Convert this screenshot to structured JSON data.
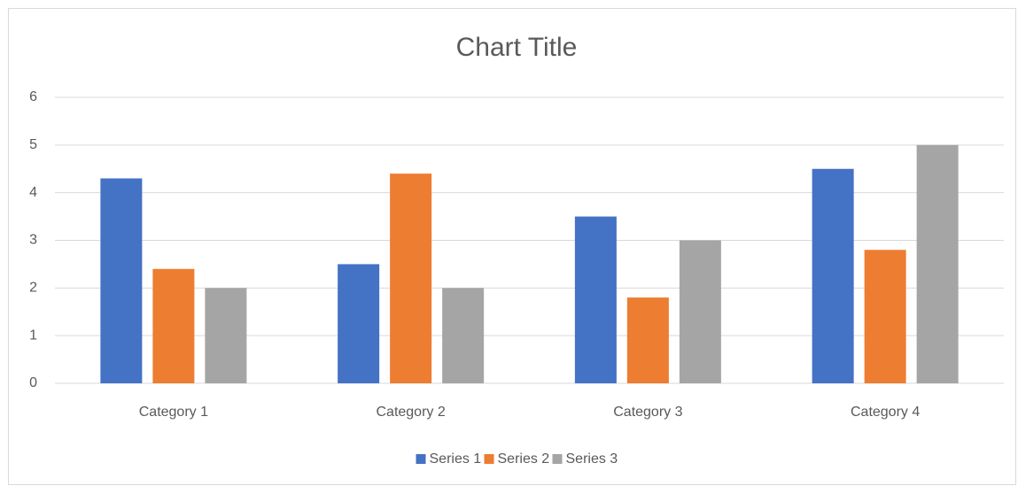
{
  "chart_data": {
    "type": "bar",
    "title": "Chart Title",
    "categories": [
      "Category 1",
      "Category 2",
      "Category 3",
      "Category 4"
    ],
    "series": [
      {
        "name": "Series 1",
        "color": "#4472c4",
        "values": [
          4.3,
          2.5,
          3.5,
          4.5
        ]
      },
      {
        "name": "Series 2",
        "color": "#ed7d31",
        "values": [
          2.4,
          4.4,
          1.8,
          2.8
        ]
      },
      {
        "name": "Series 3",
        "color": "#a5a5a5",
        "values": [
          2,
          2,
          3,
          5
        ]
      }
    ],
    "ylim": [
      0,
      6
    ],
    "yticks": [
      0,
      1,
      2,
      3,
      4,
      5,
      6
    ],
    "grid": true,
    "legend": "bottom"
  }
}
